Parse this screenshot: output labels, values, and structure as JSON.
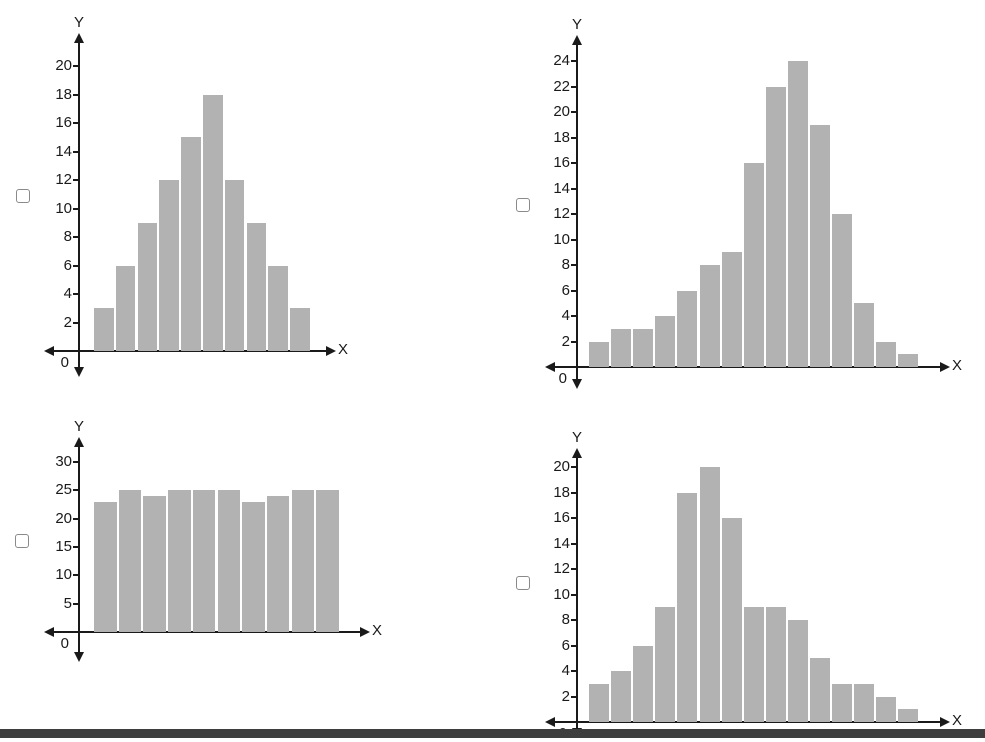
{
  "page": {
    "background": "#ffffff",
    "bottom_bar_color": "#3e3e3e"
  },
  "colors": {
    "bar_fill": "#b2b2b2",
    "axis": "#1a1a1a",
    "checkbox_border": "#8a8a8a"
  },
  "options": [
    {
      "checked": false
    },
    {
      "checked": false
    },
    {
      "checked": false
    },
    {
      "checked": false
    }
  ],
  "chart_data": [
    {
      "type": "bar",
      "title": "",
      "xlabel": "X",
      "ylabel": "Y",
      "origin_label": "0",
      "values": [
        3,
        6,
        9,
        12,
        15,
        18,
        12,
        9,
        6,
        3
      ],
      "y_ticks": [
        2,
        4,
        6,
        8,
        10,
        12,
        14,
        16,
        18,
        20
      ],
      "ylim": [
        0,
        22
      ],
      "grid": false,
      "legend": "none"
    },
    {
      "type": "bar",
      "title": "",
      "xlabel": "X",
      "ylabel": "Y",
      "origin_label": "0",
      "values": [
        2,
        3,
        3,
        4,
        6,
        8,
        9,
        16,
        22,
        24,
        19,
        12,
        5,
        2,
        1
      ],
      "y_ticks": [
        2,
        4,
        6,
        8,
        10,
        12,
        14,
        16,
        18,
        20,
        22,
        24
      ],
      "ylim": [
        0,
        26
      ],
      "grid": false,
      "legend": "none"
    },
    {
      "type": "bar",
      "title": "",
      "xlabel": "X",
      "ylabel": "Y",
      "origin_label": "0",
      "values": [
        23,
        25,
        24,
        25,
        25,
        25,
        23,
        24,
        25,
        25
      ],
      "y_ticks": [
        5,
        10,
        15,
        20,
        25,
        30
      ],
      "ylim": [
        0,
        33
      ],
      "grid": false,
      "legend": "none"
    },
    {
      "type": "bar",
      "title": "",
      "xlabel": "X",
      "ylabel": "Y",
      "origin_label": "0",
      "values": [
        3,
        4,
        6,
        9,
        18,
        20,
        16,
        9,
        9,
        8,
        5,
        3,
        3,
        2,
        1
      ],
      "y_ticks": [
        2,
        4,
        6,
        8,
        10,
        12,
        14,
        16,
        18,
        20
      ],
      "ylim": [
        0,
        22
      ],
      "grid": false,
      "legend": "none"
    }
  ]
}
